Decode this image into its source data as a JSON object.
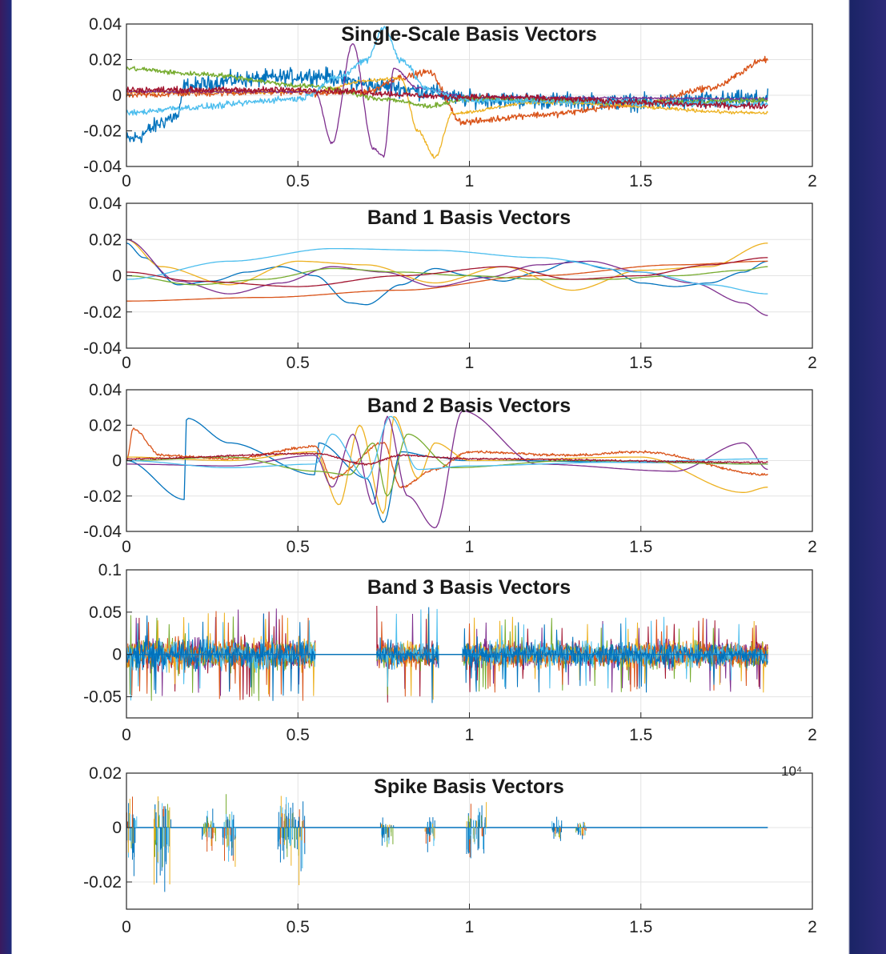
{
  "figure": {
    "exponent_label": "10⁴"
  },
  "colors": [
    "#0072BD",
    "#D95319",
    "#EDB120",
    "#7E2F8E",
    "#77AC30",
    "#4DBEEE",
    "#A2142F"
  ],
  "chart_data": [
    {
      "type": "line",
      "title": "Single-Scale Basis Vectors",
      "xlim": [
        0,
        2
      ],
      "ylim": [
        -0.04,
        0.04
      ],
      "xticks": [
        "0",
        "0.5",
        "1",
        "1.5",
        "2"
      ],
      "yticks": [
        "0.04",
        "0.02",
        "0",
        "-0.02",
        "-0.04"
      ],
      "grid": true,
      "series": [
        {
          "x": [
            0,
            0.15,
            0.17,
            0.35,
            0.55,
            0.75,
            0.88,
            0.98,
            1.2,
            1.5,
            1.87
          ],
          "y": [
            -0.025,
            -0.012,
            0.005,
            0.009,
            0.011,
            0.005,
            0.002,
            -0.002,
            -0.003,
            -0.004,
            -0.002
          ],
          "noise": 0.004
        },
        {
          "x": [
            0,
            0.2,
            0.5,
            0.55,
            0.7,
            0.8,
            0.88,
            0.98,
            1.2,
            1.5,
            1.7,
            1.87
          ],
          "y": [
            0,
            0.001,
            0.002,
            0.001,
            0.002,
            0.01,
            0.013,
            -0.015,
            -0.011,
            -0.005,
            0.004,
            0.02
          ],
          "noise": 0.0015
        },
        {
          "x": [
            0,
            0.55,
            0.7,
            0.8,
            0.85,
            0.9,
            0.95,
            1.2,
            1.87
          ],
          "y": [
            0.002,
            0.002,
            0.008,
            0.01,
            -0.02,
            -0.035,
            -0.01,
            -0.004,
            -0.01
          ],
          "noise": 0.0008
        },
        {
          "x": [
            0,
            0.55,
            0.6,
            0.66,
            0.72,
            0.75,
            0.78,
            0.85,
            1.0,
            1.87
          ],
          "y": [
            0.002,
            0.002,
            -0.027,
            0.029,
            -0.03,
            -0.034,
            0.015,
            0.004,
            -0.001,
            -0.002
          ],
          "noise": 0.0006
        },
        {
          "x": [
            0,
            0.2,
            0.55,
            0.75,
            0.88,
            1.0,
            1.5,
            1.87
          ],
          "y": [
            0.015,
            0.012,
            0.005,
            -0.002,
            -0.006,
            -0.002,
            -0.004,
            -0.003
          ],
          "noise": 0.0012
        },
        {
          "x": [
            0,
            0.17,
            0.5,
            0.62,
            0.7,
            0.75,
            0.8,
            0.88,
            1.0,
            1.87
          ],
          "y": [
            -0.01,
            -0.007,
            -0.002,
            0.01,
            0.02,
            0.038,
            0.02,
            0.003,
            -0.003,
            -0.005
          ],
          "noise": 0.0015
        },
        {
          "x": [
            0,
            0.5,
            1.0,
            1.87
          ],
          "y": [
            0.003,
            0.003,
            -0.001,
            -0.006
          ],
          "noise": 0.0015
        }
      ]
    },
    {
      "type": "line",
      "title": "Band 1 Basis Vectors",
      "xlim": [
        0,
        2
      ],
      "ylim": [
        -0.04,
        0.04
      ],
      "xticks": [
        "0",
        "0.5",
        "1",
        "1.5",
        "2"
      ],
      "yticks": [
        "0.04",
        "0.02",
        "0",
        "-0.02",
        "-0.04"
      ],
      "grid": true,
      "series": [
        {
          "x": [
            0,
            0.05,
            0.15,
            0.25,
            0.35,
            0.45,
            0.55,
            0.65,
            0.7,
            0.8,
            0.9,
            1.0,
            1.1,
            1.2,
            1.3,
            1.4,
            1.5,
            1.6,
            1.7,
            1.8,
            1.87
          ],
          "y": [
            0.018,
            0.01,
            -0.005,
            -0.003,
            0.002,
            0.005,
            0.0,
            -0.015,
            -0.016,
            -0.005,
            0.004,
            0.0,
            -0.003,
            0.002,
            0.008,
            0.004,
            -0.004,
            -0.006,
            -0.004,
            0.002,
            0.008
          ],
          "noise": 0
        },
        {
          "x": [
            0,
            0.4,
            0.8,
            1.2,
            1.6,
            1.87
          ],
          "y": [
            -0.014,
            -0.012,
            -0.008,
            0.0,
            0.006,
            0.008
          ],
          "noise": 0
        },
        {
          "x": [
            0,
            0.1,
            0.3,
            0.5,
            0.7,
            0.9,
            1.1,
            1.3,
            1.5,
            1.7,
            1.87
          ],
          "y": [
            0.02,
            0.005,
            -0.005,
            0.008,
            0.006,
            -0.004,
            0.005,
            -0.008,
            0.003,
            0.005,
            0.018
          ],
          "noise": 0
        },
        {
          "x": [
            0,
            0.15,
            0.3,
            0.45,
            0.6,
            0.75,
            0.9,
            1.05,
            1.2,
            1.35,
            1.5,
            1.65,
            1.8,
            1.87
          ],
          "y": [
            0.02,
            -0.003,
            -0.01,
            -0.004,
            0.005,
            0.002,
            -0.006,
            -0.001,
            0.006,
            0.008,
            0.002,
            -0.004,
            -0.015,
            -0.022
          ],
          "noise": 0
        },
        {
          "x": [
            0,
            0.2,
            0.4,
            0.6,
            0.8,
            1.0,
            1.2,
            1.4,
            1.6,
            1.8,
            1.87
          ],
          "y": [
            0.0,
            -0.005,
            -0.002,
            0.004,
            0.002,
            0.0,
            -0.002,
            -0.002,
            0.0,
            0.003,
            0.005
          ],
          "noise": 0
        },
        {
          "x": [
            0,
            0.3,
            0.6,
            0.9,
            1.2,
            1.5,
            1.7,
            1.87
          ],
          "y": [
            -0.002,
            0.008,
            0.015,
            0.014,
            0.01,
            0.002,
            -0.005,
            -0.01
          ],
          "noise": 0
        },
        {
          "x": [
            0,
            0.2,
            0.5,
            0.8,
            1.1,
            1.3,
            1.5,
            1.7,
            1.87
          ],
          "y": [
            0.002,
            -0.003,
            -0.006,
            0.0,
            0.005,
            -0.002,
            0.0,
            0.006,
            0.01
          ],
          "noise": 0
        }
      ]
    },
    {
      "type": "line",
      "title": "Band 2 Basis Vectors",
      "xlim": [
        0,
        2
      ],
      "ylim": [
        -0.04,
        0.04
      ],
      "xticks": [
        "0",
        "0.5",
        "1",
        "1.5",
        "2"
      ],
      "yticks": [
        "0.04",
        "0.02",
        "0",
        "-0.02",
        "-0.04"
      ],
      "grid": true,
      "series": [
        {
          "x": [
            0,
            0.17,
            0.175,
            0.3,
            0.55,
            0.56,
            0.7,
            0.75,
            0.8,
            0.9,
            0.98,
            1.1,
            1.5,
            1.87
          ],
          "y": [
            0.0,
            -0.022,
            0.024,
            0.01,
            -0.008,
            0.01,
            -0.01,
            -0.035,
            0.005,
            0.002,
            0.0,
            0.0,
            -0.001,
            -0.002
          ],
          "noise": 0
        },
        {
          "x": [
            0,
            0.02,
            0.1,
            0.3,
            0.55,
            0.6,
            0.75,
            0.8,
            0.9,
            1.0,
            1.3,
            1.5,
            1.87
          ],
          "y": [
            0.0,
            0.018,
            0.003,
            0.001,
            0.008,
            -0.01,
            0.01,
            -0.015,
            -0.005,
            0.005,
            0.003,
            0.005,
            -0.008
          ],
          "noise": 0.0006
        },
        {
          "x": [
            0,
            0.3,
            0.55,
            0.62,
            0.68,
            0.75,
            0.78,
            0.85,
            0.9,
            1.0,
            1.5,
            1.8,
            1.87
          ],
          "y": [
            0.002,
            0.0,
            0.005,
            -0.025,
            0.02,
            -0.03,
            0.025,
            -0.01,
            0.01,
            0.0,
            0.002,
            -0.018,
            -0.015
          ],
          "noise": 0
        },
        {
          "x": [
            0,
            0.3,
            0.55,
            0.6,
            0.66,
            0.72,
            0.76,
            0.82,
            0.9,
            0.98,
            1.2,
            1.6,
            1.8,
            1.87
          ],
          "y": [
            -0.002,
            -0.003,
            0.003,
            -0.015,
            0.015,
            -0.025,
            0.025,
            -0.02,
            -0.038,
            0.028,
            -0.002,
            -0.006,
            0.01,
            -0.005
          ],
          "noise": 0
        },
        {
          "x": [
            0,
            0.3,
            0.55,
            0.65,
            0.72,
            0.76,
            0.82,
            0.95,
            1.3,
            1.87
          ],
          "y": [
            0.0,
            0.002,
            -0.006,
            -0.008,
            0.01,
            -0.02,
            0.015,
            -0.004,
            0.0,
            -0.002
          ],
          "noise": 0
        },
        {
          "x": [
            0,
            0.3,
            0.55,
            0.6,
            0.7,
            0.77,
            0.85,
            1.0,
            1.4,
            1.87
          ],
          "y": [
            0.0,
            -0.004,
            -0.002,
            0.015,
            -0.01,
            0.025,
            -0.005,
            -0.003,
            -0.001,
            0.001
          ],
          "noise": 0
        },
        {
          "x": [
            0,
            0.55,
            0.7,
            0.8,
            1.0,
            1.87
          ],
          "y": [
            0.001,
            0.004,
            -0.002,
            0.003,
            0.001,
            -0.001
          ],
          "noise": 0.0004
        }
      ]
    },
    {
      "type": "line",
      "title": "Band 3 Basis Vectors",
      "xlim": [
        0,
        2
      ],
      "ylim": [
        -0.075,
        0.1
      ],
      "xticks": [
        "0",
        "0.5",
        "1",
        "1.5",
        "2"
      ],
      "yticks": [
        "0.1",
        "0.05",
        "0",
        "-0.05"
      ],
      "grid": true,
      "noise_segments": [
        {
          "x": [
            0.0,
            0.55
          ],
          "amplitude": 0.03,
          "peak": 0.055
        },
        {
          "x": [
            0.73,
            0.91
          ],
          "amplitude": 0.025,
          "peak": 0.06
        },
        {
          "x": [
            0.98,
            1.87
          ],
          "amplitude": 0.025,
          "peak": 0.045
        }
      ]
    },
    {
      "type": "line",
      "title": "Spike Basis Vectors",
      "xlim": [
        0,
        2
      ],
      "ylim": [
        -0.03,
        0.02
      ],
      "xticks": [
        "0",
        "0.5",
        "1",
        "1.5",
        "2"
      ],
      "yticks": [
        "0.02",
        "0",
        "-0.02"
      ],
      "grid": true,
      "spike_bursts": [
        {
          "x": [
            0.0,
            0.03
          ],
          "depth": -0.02
        },
        {
          "x": [
            0.08,
            0.13
          ],
          "depth": -0.028
        },
        {
          "x": [
            0.22,
            0.26
          ],
          "depth": -0.01
        },
        {
          "x": [
            0.28,
            0.32
          ],
          "depth": -0.018
        },
        {
          "x": [
            0.44,
            0.52
          ],
          "depth": -0.022
        },
        {
          "x": [
            0.74,
            0.78
          ],
          "depth": -0.008
        },
        {
          "x": [
            0.87,
            0.9
          ],
          "depth": -0.01
        },
        {
          "x": [
            0.99,
            1.05
          ],
          "depth": -0.016
        },
        {
          "x": [
            1.24,
            1.27
          ],
          "depth": -0.006
        },
        {
          "x": [
            1.31,
            1.34
          ],
          "depth": -0.005
        }
      ]
    }
  ]
}
